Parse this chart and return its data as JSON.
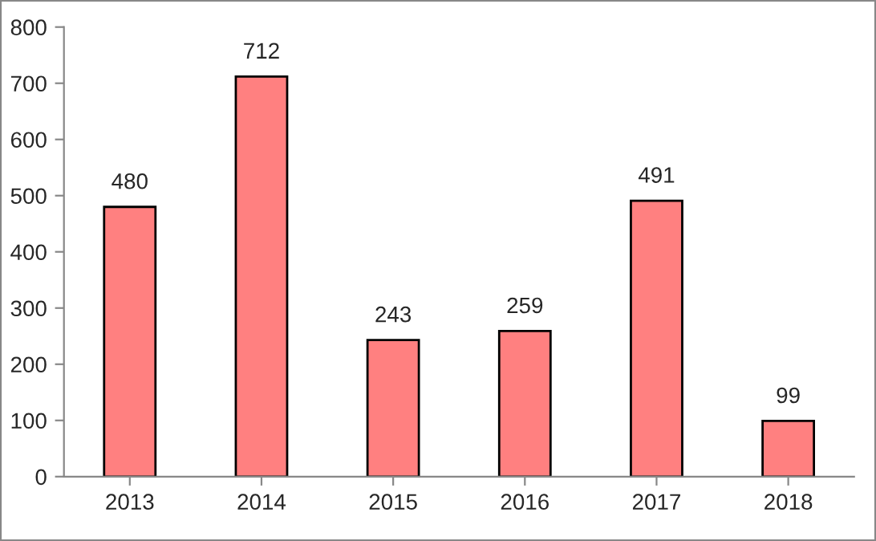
{
  "chart_data": {
    "type": "bar",
    "categories": [
      "2013",
      "2014",
      "2015",
      "2016",
      "2017",
      "2018"
    ],
    "values": [
      480,
      712,
      243,
      259,
      491,
      99
    ],
    "color": "#ff8080",
    "ylim": [
      0,
      800
    ],
    "yticks": [
      0,
      100,
      200,
      300,
      400,
      500,
      600,
      700,
      800
    ],
    "data_labels": true,
    "grid": false,
    "legend": false
  }
}
